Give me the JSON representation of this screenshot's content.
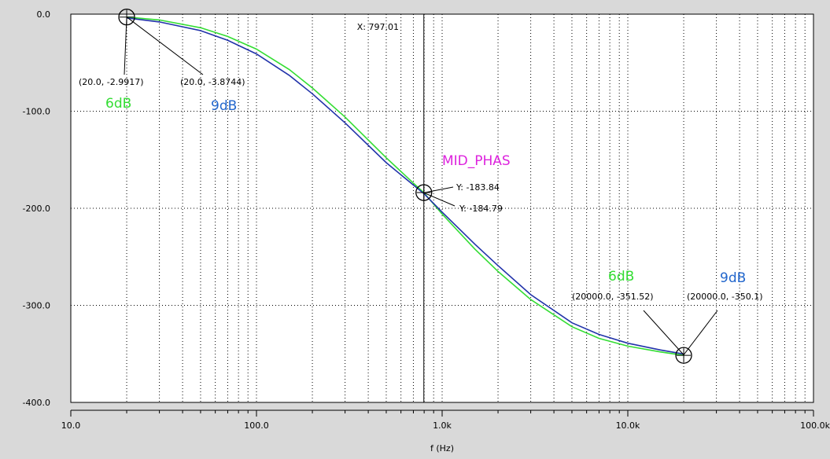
{
  "chart_data": {
    "type": "line",
    "title": "",
    "xlabel": "f (Hz)",
    "ylabel": "",
    "x_scale": "log",
    "xlim": [
      10,
      100000
    ],
    "ylim": [
      -400,
      0
    ],
    "grid": true,
    "x_ticks": [
      {
        "value": 10,
        "label": "10.0"
      },
      {
        "value": 100,
        "label": "100.0"
      },
      {
        "value": 1000,
        "label": "1.0k"
      },
      {
        "value": 10000,
        "label": "10.0k"
      },
      {
        "value": 100000,
        "label": "100.0k"
      }
    ],
    "y_ticks": [
      {
        "value": 0,
        "label": "0.0"
      },
      {
        "value": -100,
        "label": "-100.0"
      },
      {
        "value": -200,
        "label": "-200.0"
      },
      {
        "value": -300,
        "label": "-300.0"
      },
      {
        "value": -400,
        "label": "-400.0"
      }
    ],
    "series": [
      {
        "name": "6dB",
        "color": "#33dd33",
        "x": [
          20,
          30,
          50,
          70,
          100,
          150,
          200,
          300,
          500,
          700,
          797.01,
          1000,
          1500,
          2000,
          3000,
          5000,
          7000,
          10000,
          15000,
          20000
        ],
        "y": [
          -2.9917,
          -6,
          -14,
          -23,
          -36,
          -57,
          -76,
          -106,
          -148,
          -174,
          -183.84,
          -206,
          -242,
          -265,
          -294,
          -322,
          -334,
          -342,
          -348,
          -351.52
        ]
      },
      {
        "name": "9dB",
        "color": "#2233aa",
        "x": [
          20,
          30,
          50,
          70,
          100,
          150,
          200,
          300,
          500,
          700,
          797.01,
          1000,
          1500,
          2000,
          3000,
          5000,
          7000,
          10000,
          15000,
          20000
        ],
        "y": [
          -3.8744,
          -8,
          -17,
          -27,
          -41,
          -63,
          -82,
          -112,
          -153,
          -176,
          -184.79,
          -204,
          -237,
          -259,
          -289,
          -318,
          -330,
          -339,
          -346,
          -350.1
        ]
      }
    ],
    "cursor": {
      "x": 797.01,
      "label": "X: 797.01"
    },
    "marker_label": "MID_PHAS",
    "point_labels": {
      "start_6db": "(20.0, -2.9917)",
      "start_9db": "(20.0, -3.8744)",
      "mid_6db": "Y: -183.84",
      "mid_9db": "Y: -184.79",
      "end_6db": "(20000.0, -351.52)",
      "end_9db": "(20000.0, -350.1)"
    },
    "series_tags": {
      "tag_6db": "6dB",
      "tag_9db": "9dB"
    },
    "colors": {
      "green": "#33dd33",
      "blue": "#2266cc",
      "blue_line": "#2233aa",
      "magenta": "#dd22dd",
      "plot_bg": "#ffffff",
      "frame_bg": "#d9d9d9"
    }
  }
}
